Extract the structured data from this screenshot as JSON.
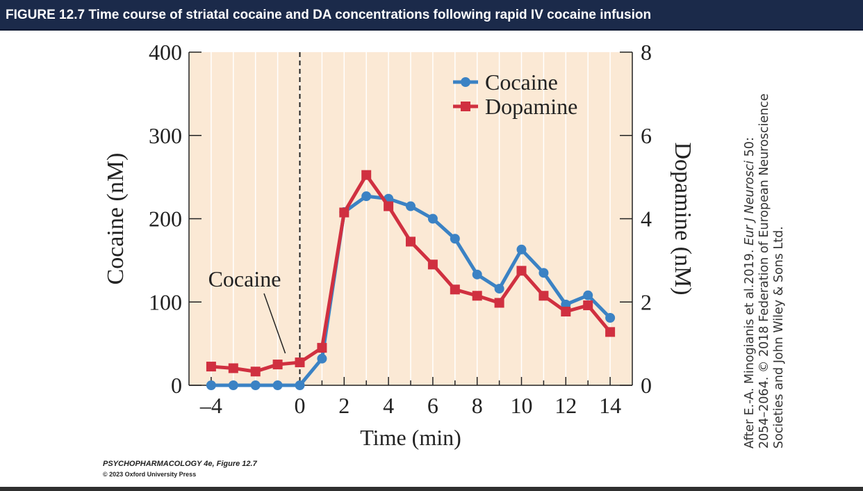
{
  "header": {
    "title": "FIGURE 12.7  Time course of striatal cocaine and DA concentrations following rapid IV cocaine infusion"
  },
  "footer": {
    "book": "PSYCHOPHARMACOLOGY 4e, Figure 12.7",
    "copyright": "© 2023 Oxford University Press"
  },
  "source": {
    "line1_pre": "After E.-A. Minogianis et al.2019. ",
    "line1_journal": "Eur J Neurosci",
    "line1_post": " 50:",
    "line2": "2054–2064. © 2018 Federation of European Neuroscience",
    "line3": "Societies and John Wiley & Sons Ltd."
  },
  "colors": {
    "header_bg": "#1b2a4a",
    "plot_bg": "#fbe9d5",
    "cocaine": "#3b82c4",
    "dopamine": "#d03040"
  },
  "chart_data": {
    "type": "line",
    "xlabel": "Time (min)",
    "ylabel_left": "Cocaine (nM)",
    "ylabel_right": "Dopamine (nM)",
    "xlim": [
      -5,
      15
    ],
    "ylim_left": [
      0,
      400
    ],
    "ylim_right": [
      0,
      8
    ],
    "x_ticks": [
      -4,
      0,
      2,
      4,
      6,
      8,
      10,
      12,
      14
    ],
    "x_tick_labels": [
      "–4",
      "0",
      "2",
      "4",
      "6",
      "8",
      "10",
      "12",
      "14"
    ],
    "x_minor_ticks": [
      -3,
      -2,
      -1,
      1,
      3,
      5,
      7,
      9,
      11,
      13
    ],
    "y_left_ticks": [
      0,
      100,
      200,
      300,
      400
    ],
    "y_left_tick_labels": [
      "0",
      "100",
      "200",
      "300",
      "400"
    ],
    "y_right_ticks": [
      0,
      2,
      4,
      6,
      8
    ],
    "y_right_tick_labels": [
      "0",
      "2",
      "4",
      "6",
      "8"
    ],
    "grid": "vertical",
    "infusion_marker_x": 0,
    "annotation": {
      "text": "Cocaine",
      "points_to_x": -0.5
    },
    "legend": {
      "position": "top-right",
      "entries": [
        "Cocaine",
        "Dopamine"
      ]
    },
    "series": [
      {
        "name": "Cocaine",
        "axis": "left",
        "marker": "circle",
        "x": [
          -4,
          -3,
          -2,
          -1,
          0,
          1,
          2,
          3,
          4,
          5,
          6,
          7,
          8,
          9,
          10,
          11,
          12,
          13,
          14
        ],
        "values": [
          0,
          0,
          0,
          0,
          0,
          32,
          208,
          227,
          224,
          215,
          200,
          176,
          133,
          116,
          163,
          135,
          97,
          108,
          81
        ]
      },
      {
        "name": "Dopamine",
        "axis": "right",
        "marker": "square",
        "x": [
          -4,
          -3,
          -2,
          -1,
          0,
          1,
          2,
          3,
          4,
          5,
          6,
          7,
          8,
          9,
          10,
          11,
          12,
          13,
          14
        ],
        "values": [
          0.45,
          0.41,
          0.33,
          0.5,
          0.55,
          0.9,
          4.15,
          5.05,
          4.3,
          3.45,
          2.9,
          2.3,
          2.15,
          1.98,
          2.75,
          2.15,
          1.77,
          1.92,
          1.28
        ]
      }
    ]
  }
}
